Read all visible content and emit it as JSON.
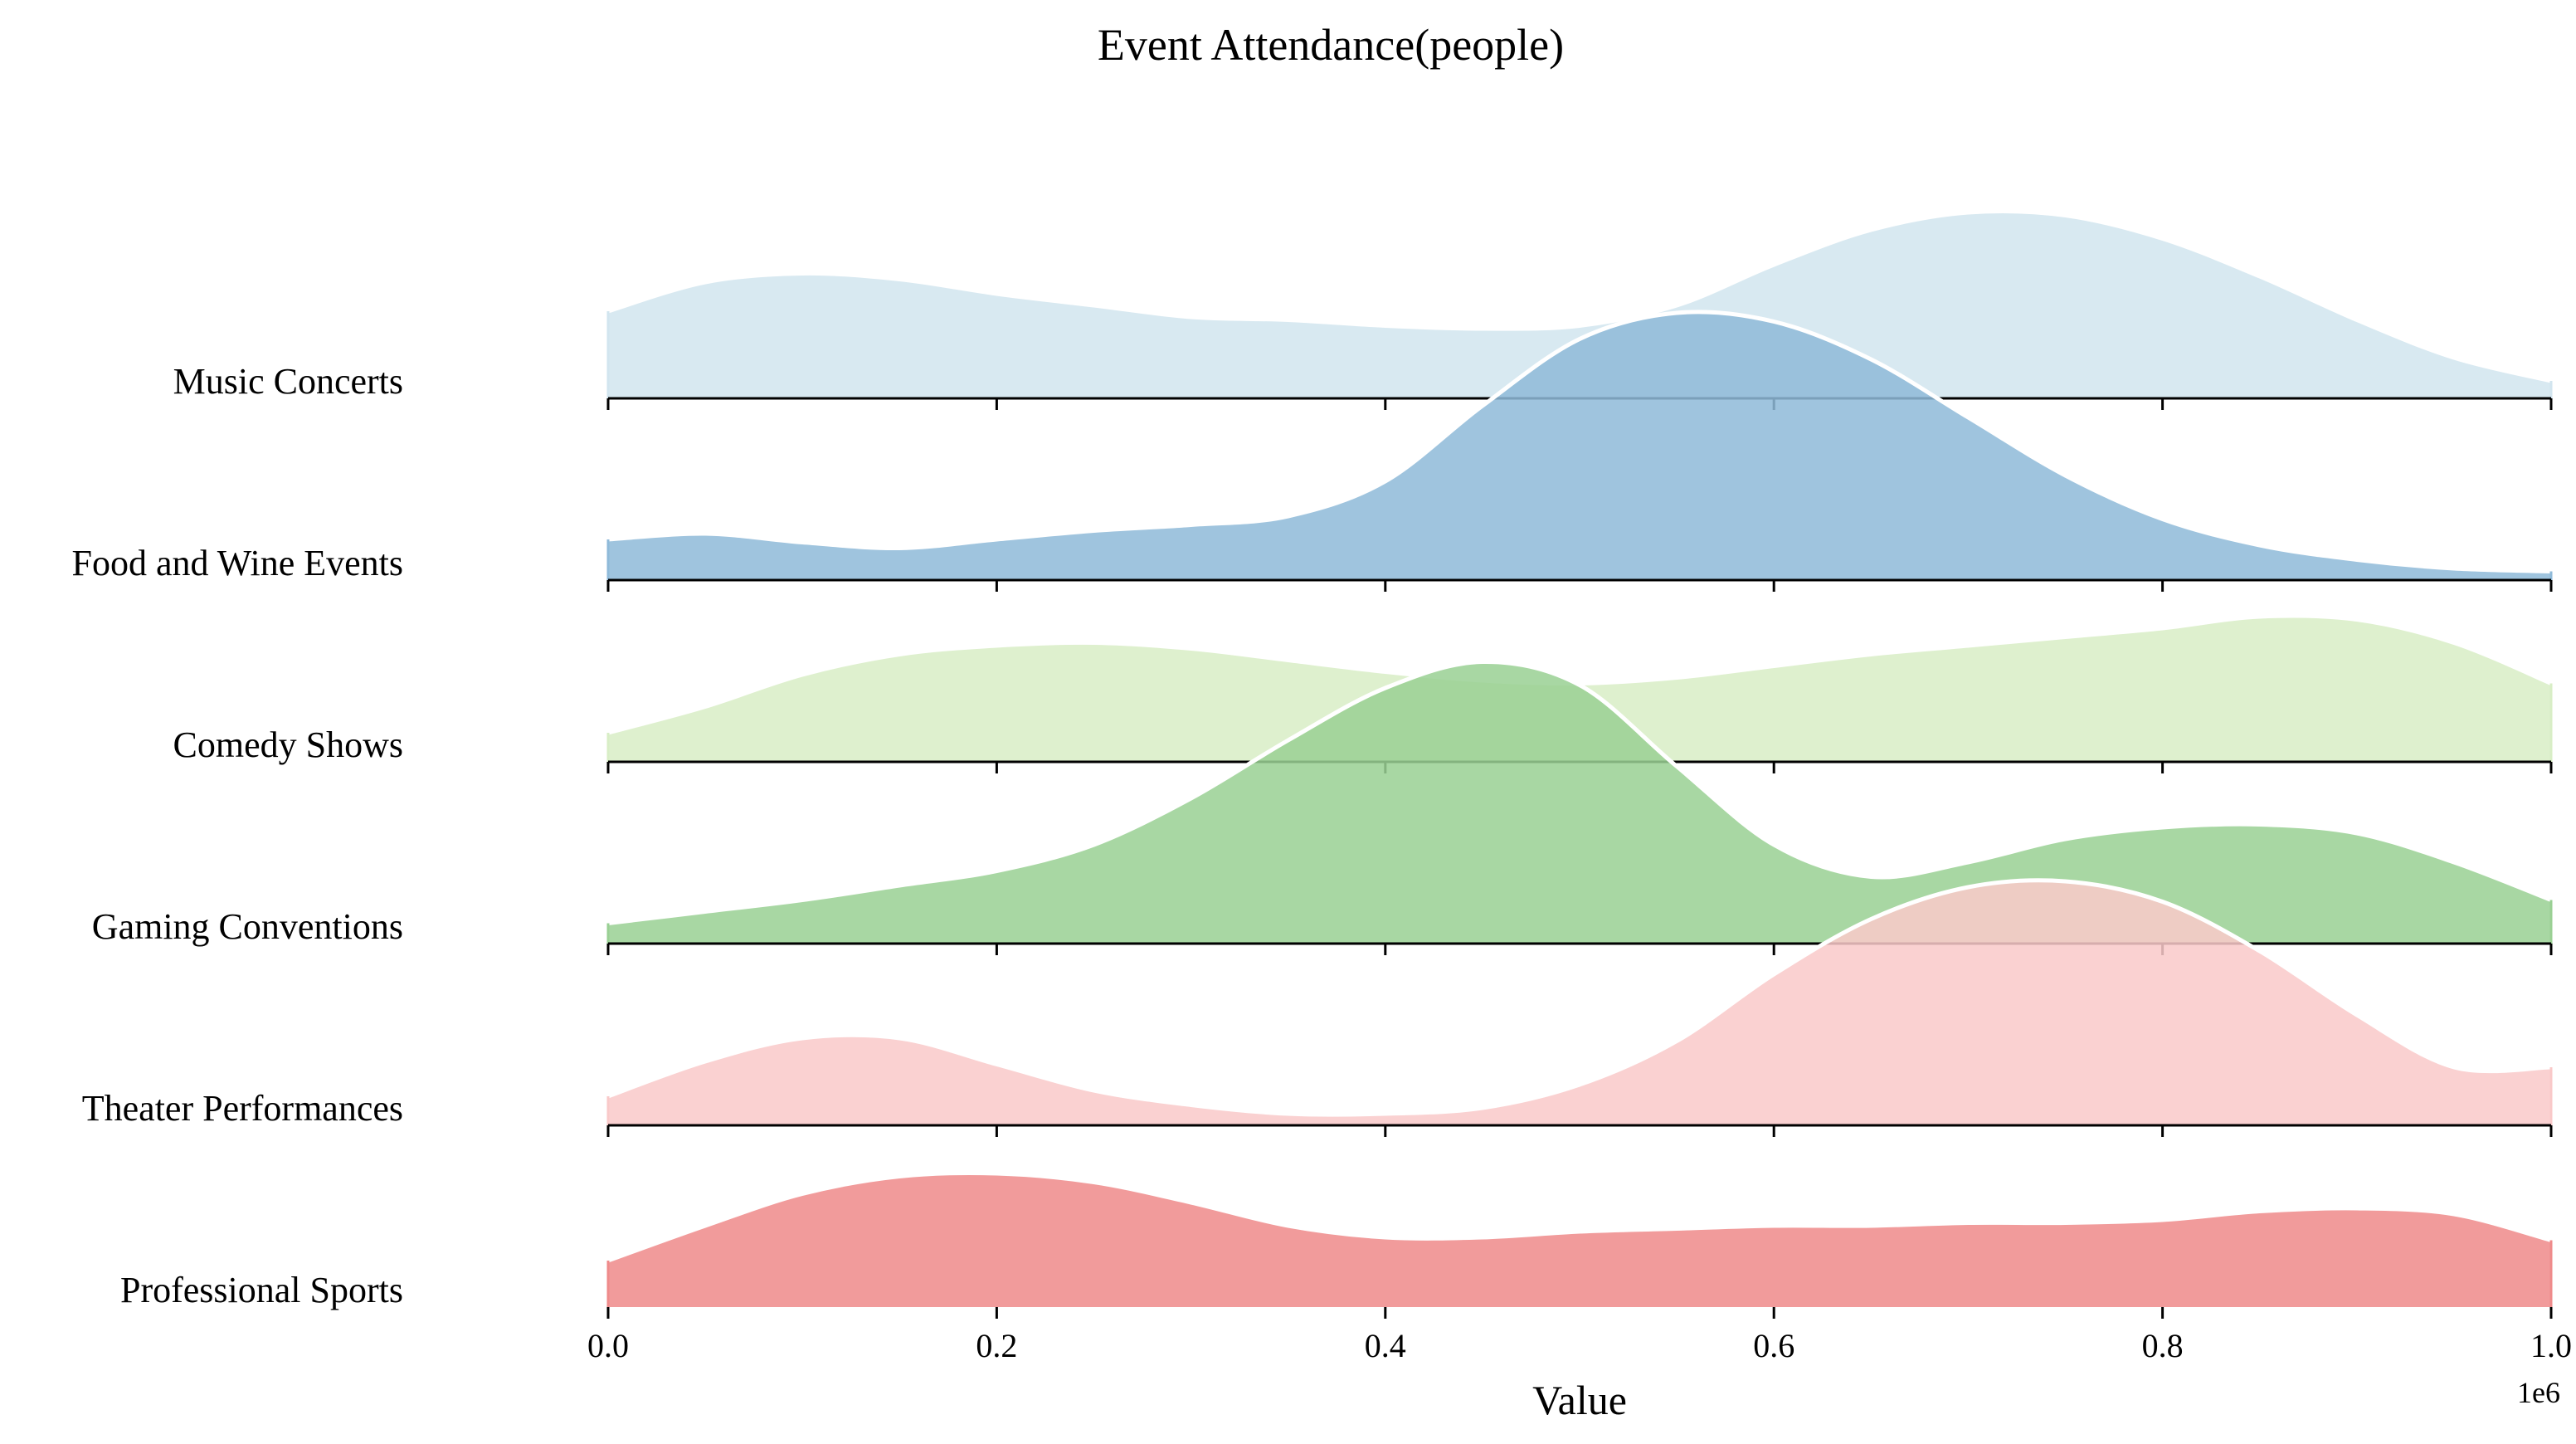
{
  "chart_data": {
    "type": "area",
    "subtype": "ridgeline",
    "title": "Event Attendance(people)",
    "xlabel": "Value",
    "ylabel": "",
    "x_offset_label": "1e6",
    "x_scale": 1000000,
    "xlim": [
      0,
      1000000
    ],
    "x_ticks": [
      0,
      200000,
      400000,
      600000,
      800000,
      1000000
    ],
    "x_tick_labels": [
      "0.0",
      "0.2",
      "0.4",
      "0.6",
      "0.8",
      "1.0"
    ],
    "grid": false,
    "legend": "none",
    "x": [
      0,
      50000,
      100000,
      150000,
      200000,
      250000,
      300000,
      350000,
      400000,
      450000,
      500000,
      550000,
      600000,
      650000,
      700000,
      750000,
      800000,
      850000,
      900000,
      950000,
      1000000
    ],
    "series": [
      {
        "name": "Music Concerts",
        "color": "#d2e5ef",
        "values": [
          0.3,
          0.4,
          0.43,
          0.41,
          0.36,
          0.32,
          0.28,
          0.27,
          0.25,
          0.24,
          0.25,
          0.32,
          0.46,
          0.58,
          0.64,
          0.63,
          0.55,
          0.42,
          0.27,
          0.14,
          0.06
        ]
      },
      {
        "name": "Food and Wine Events",
        "color": "#8fbad9",
        "values": [
          0.14,
          0.16,
          0.13,
          0.11,
          0.14,
          0.17,
          0.19,
          0.22,
          0.34,
          0.6,
          0.83,
          0.92,
          0.89,
          0.76,
          0.56,
          0.36,
          0.21,
          0.12,
          0.07,
          0.04,
          0.03
        ]
      },
      {
        "name": "Comedy Shows",
        "color": "#d8eec6",
        "values": [
          0.1,
          0.19,
          0.3,
          0.37,
          0.4,
          0.41,
          0.39,
          0.35,
          0.31,
          0.28,
          0.27,
          0.29,
          0.33,
          0.37,
          0.4,
          0.43,
          0.46,
          0.5,
          0.49,
          0.41,
          0.27
        ]
      },
      {
        "name": "Gaming Conventions",
        "color": "#9ad094",
        "values": [
          0.07,
          0.11,
          0.15,
          0.2,
          0.25,
          0.34,
          0.5,
          0.7,
          0.88,
          0.97,
          0.89,
          0.61,
          0.34,
          0.23,
          0.28,
          0.36,
          0.4,
          0.41,
          0.38,
          0.28,
          0.15
        ]
      },
      {
        "name": "Theater Performances",
        "color": "#f9c9c9",
        "values": [
          0.1,
          0.22,
          0.3,
          0.3,
          0.21,
          0.12,
          0.07,
          0.04,
          0.04,
          0.06,
          0.14,
          0.29,
          0.52,
          0.71,
          0.82,
          0.84,
          0.77,
          0.6,
          0.38,
          0.2,
          0.2
        ]
      },
      {
        "name": "Professional Sports",
        "color": "#ef8b8b",
        "values": [
          0.16,
          0.28,
          0.39,
          0.45,
          0.46,
          0.43,
          0.36,
          0.28,
          0.24,
          0.24,
          0.26,
          0.27,
          0.28,
          0.28,
          0.29,
          0.29,
          0.3,
          0.33,
          0.34,
          0.32,
          0.23
        ]
      }
    ]
  }
}
